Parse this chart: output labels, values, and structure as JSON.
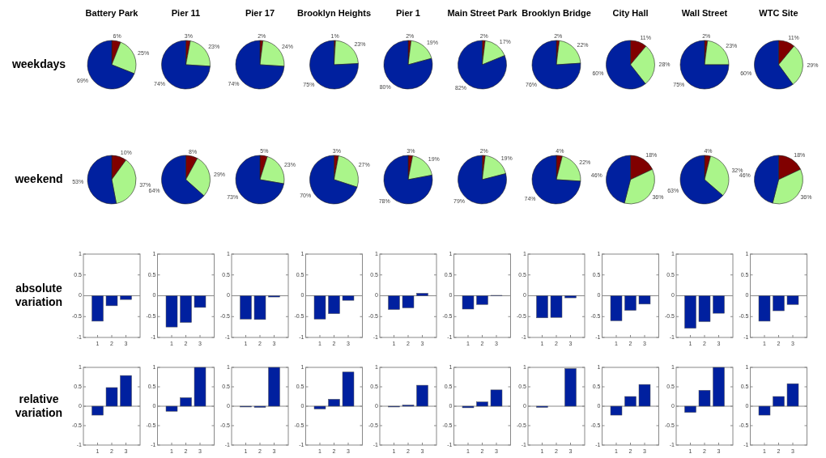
{
  "chart_data": [
    {
      "type": "pie",
      "title": "Battery Park",
      "ylabel": "weekdays",
      "categories": [
        null,
        null,
        null
      ],
      "values": [
        6,
        25,
        69
      ],
      "value_labels": [
        "6%",
        "25%",
        "69%"
      ],
      "colors": [
        "#800000",
        "#aaf58a",
        "#00209f"
      ]
    },
    {
      "type": "pie",
      "title": "Pier 11",
      "categories": [
        null,
        null,
        null
      ],
      "values": [
        3,
        23,
        74
      ],
      "value_labels": [
        "3%",
        "23%",
        "74%"
      ],
      "colors": [
        "#800000",
        "#aaf58a",
        "#00209f"
      ]
    },
    {
      "type": "pie",
      "title": "Pier 17",
      "categories": [
        null,
        null,
        null
      ],
      "values": [
        2,
        24,
        74
      ],
      "value_labels": [
        "2%",
        "24%",
        "74%"
      ],
      "colors": [
        "#800000",
        "#aaf58a",
        "#00209f"
      ]
    },
    {
      "type": "pie",
      "title": "Brooklyn Heights",
      "categories": [
        null,
        null,
        null
      ],
      "values": [
        1,
        23,
        75
      ],
      "value_labels": [
        "1%",
        "23%",
        "75%"
      ],
      "colors": [
        "#800000",
        "#aaf58a",
        "#00209f"
      ]
    },
    {
      "type": "pie",
      "title": "Pier 1",
      "categories": [
        null,
        null,
        null
      ],
      "values": [
        2,
        19,
        80
      ],
      "value_labels": [
        "2%",
        "19%",
        "80%"
      ],
      "colors": [
        "#800000",
        "#aaf58a",
        "#00209f"
      ]
    },
    {
      "type": "pie",
      "title": "Main Street Park",
      "categories": [
        null,
        null,
        null
      ],
      "values": [
        2,
        17,
        82
      ],
      "value_labels": [
        "2%",
        "17%",
        "82%"
      ],
      "colors": [
        "#800000",
        "#aaf58a",
        "#00209f"
      ]
    },
    {
      "type": "pie",
      "title": "Brooklyn Bridge",
      "categories": [
        null,
        null,
        null
      ],
      "values": [
        2,
        22,
        76
      ],
      "value_labels": [
        "2%",
        "22%",
        "76%"
      ],
      "colors": [
        "#800000",
        "#aaf58a",
        "#00209f"
      ]
    },
    {
      "type": "pie",
      "title": "City Hall",
      "categories": [
        null,
        null,
        null
      ],
      "values": [
        11,
        28,
        60
      ],
      "value_labels": [
        "11%",
        "28%",
        "60%"
      ],
      "colors": [
        "#800000",
        "#aaf58a",
        "#00209f"
      ]
    },
    {
      "type": "pie",
      "title": "Wall Street",
      "categories": [
        null,
        null,
        null
      ],
      "values": [
        2,
        23,
        75
      ],
      "value_labels": [
        "2%",
        "23%",
        "75%"
      ],
      "colors": [
        "#800000",
        "#aaf58a",
        "#00209f"
      ]
    },
    {
      "type": "pie",
      "title": "WTC Site",
      "categories": [
        null,
        null,
        null
      ],
      "values": [
        11,
        29,
        60
      ],
      "value_labels": [
        "11%",
        "29%",
        "60%"
      ],
      "colors": [
        "#800000",
        "#aaf58a",
        "#00209f"
      ]
    },
    {
      "type": "pie",
      "ylabel": "weekend",
      "categories": [
        null,
        null,
        null
      ],
      "values": [
        10,
        37,
        53
      ],
      "value_labels": [
        "10%",
        "37%",
        "53%"
      ],
      "colors": [
        "#800000",
        "#aaf58a",
        "#00209f"
      ]
    },
    {
      "type": "pie",
      "categories": [
        null,
        null,
        null
      ],
      "values": [
        8,
        29,
        64
      ],
      "value_labels": [
        "8%",
        "29%",
        "64%"
      ],
      "colors": [
        "#800000",
        "#aaf58a",
        "#00209f"
      ]
    },
    {
      "type": "pie",
      "categories": [
        null,
        null,
        null
      ],
      "values": [
        5,
        23,
        73
      ],
      "value_labels": [
        "5%",
        "23%",
        "73%"
      ],
      "colors": [
        "#800000",
        "#aaf58a",
        "#00209f"
      ]
    },
    {
      "type": "pie",
      "categories": [
        null,
        null,
        null
      ],
      "values": [
        3,
        27,
        70
      ],
      "value_labels": [
        "3%",
        "27%",
        "70%"
      ],
      "colors": [
        "#800000",
        "#aaf58a",
        "#00209f"
      ]
    },
    {
      "type": "pie",
      "categories": [
        null,
        null,
        null
      ],
      "values": [
        3,
        19,
        78
      ],
      "value_labels": [
        "3%",
        "19%",
        "78%"
      ],
      "colors": [
        "#800000",
        "#aaf58a",
        "#00209f"
      ]
    },
    {
      "type": "pie",
      "categories": [
        null,
        null,
        null
      ],
      "values": [
        2,
        19,
        79
      ],
      "value_labels": [
        "2%",
        "19%",
        "79%"
      ],
      "colors": [
        "#800000",
        "#aaf58a",
        "#00209f"
      ]
    },
    {
      "type": "pie",
      "categories": [
        null,
        null,
        null
      ],
      "values": [
        4,
        22,
        74
      ],
      "value_labels": [
        "4%",
        "22%",
        "74%"
      ],
      "colors": [
        "#800000",
        "#aaf58a",
        "#00209f"
      ]
    },
    {
      "type": "pie",
      "categories": [
        null,
        null,
        null
      ],
      "values": [
        18,
        36,
        46
      ],
      "value_labels": [
        "18%",
        "36%",
        "46%"
      ],
      "colors": [
        "#800000",
        "#aaf58a",
        "#00209f"
      ]
    },
    {
      "type": "pie",
      "categories": [
        null,
        null,
        null
      ],
      "values": [
        4,
        32,
        63
      ],
      "value_labels": [
        "4%",
        "32%",
        "63%"
      ],
      "colors": [
        "#800000",
        "#aaf58a",
        "#00209f"
      ]
    },
    {
      "type": "pie",
      "categories": [
        null,
        null,
        null
      ],
      "values": [
        18,
        36,
        46
      ],
      "value_labels": [
        "18%",
        "36%",
        "46%"
      ],
      "colors": [
        "#800000",
        "#aaf58a",
        "#00209f"
      ]
    },
    {
      "type": "bar",
      "ylabel": "absolute variation",
      "categories": [
        "1",
        "2",
        "3"
      ],
      "values": [
        -0.61,
        -0.24,
        -0.09
      ],
      "color": "#00209f",
      "ylim": [
        -1,
        1
      ],
      "yticks": [
        -1,
        -0.5,
        0,
        0.5,
        1
      ]
    },
    {
      "type": "bar",
      "categories": [
        "1",
        "2",
        "3"
      ],
      "values": [
        -0.75,
        -0.64,
        -0.28
      ],
      "color": "#00209f",
      "ylim": [
        -1,
        1
      ],
      "yticks": [
        -1,
        -0.5,
        0,
        0.5,
        1
      ]
    },
    {
      "type": "bar",
      "categories": [
        "1",
        "2",
        "3"
      ],
      "values": [
        -0.56,
        -0.57,
        -0.03
      ],
      "color": "#00209f",
      "ylim": [
        -1,
        1
      ],
      "yticks": [
        -1,
        -0.5,
        0,
        0.5,
        1
      ]
    },
    {
      "type": "bar",
      "categories": [
        "1",
        "2",
        "3"
      ],
      "values": [
        -0.56,
        -0.43,
        -0.11
      ],
      "color": "#00209f",
      "ylim": [
        -1,
        1
      ],
      "yticks": [
        -1,
        -0.5,
        0,
        0.5,
        1
      ]
    },
    {
      "type": "bar",
      "categories": [
        "1",
        "2",
        "3"
      ],
      "values": [
        -0.33,
        -0.29,
        0.06
      ],
      "color": "#00209f",
      "ylim": [
        -1,
        1
      ],
      "yticks": [
        -1,
        -0.5,
        0,
        0.5,
        1
      ]
    },
    {
      "type": "bar",
      "categories": [
        "1",
        "2",
        "3"
      ],
      "values": [
        -0.32,
        -0.21,
        0.01
      ],
      "color": "#00209f",
      "ylim": [
        -1,
        1
      ],
      "yticks": [
        -1,
        -0.5,
        0,
        0.5,
        1
      ]
    },
    {
      "type": "bar",
      "categories": [
        "1",
        "2",
        "3"
      ],
      "values": [
        -0.53,
        -0.52,
        -0.05
      ],
      "color": "#00209f",
      "ylim": [
        -1,
        1
      ],
      "yticks": [
        -1,
        -0.5,
        0,
        0.5,
        1
      ]
    },
    {
      "type": "bar",
      "categories": [
        "1",
        "2",
        "3"
      ],
      "values": [
        -0.6,
        -0.35,
        -0.2
      ],
      "color": "#00209f",
      "ylim": [
        -1,
        1
      ],
      "yticks": [
        -1,
        -0.5,
        0,
        0.5,
        1
      ]
    },
    {
      "type": "bar",
      "categories": [
        "1",
        "2",
        "3"
      ],
      "values": [
        -0.78,
        -0.62,
        -0.42
      ],
      "color": "#00209f",
      "ylim": [
        -1,
        1
      ],
      "yticks": [
        -1,
        -0.5,
        0,
        0.5,
        1
      ]
    },
    {
      "type": "bar",
      "categories": [
        "1",
        "2",
        "3"
      ],
      "values": [
        -0.61,
        -0.36,
        -0.21
      ],
      "color": "#00209f",
      "ylim": [
        -1,
        1
      ],
      "yticks": [
        -1,
        -0.5,
        0,
        0.5,
        1
      ]
    },
    {
      "type": "bar",
      "ylabel": "relative variation",
      "categories": [
        "1",
        "2",
        "3"
      ],
      "values": [
        -0.23,
        0.48,
        0.79
      ],
      "color": "#00209f",
      "ylim": [
        -1,
        1
      ],
      "yticks": [
        -1,
        -0.5,
        0,
        0.5,
        1
      ]
    },
    {
      "type": "bar",
      "categories": [
        "1",
        "2",
        "3"
      ],
      "values": [
        -0.13,
        0.22,
        1
      ],
      "color": "#00209f",
      "ylim": [
        -1,
        1
      ],
      "yticks": [
        -1,
        -0.5,
        0,
        0.5,
        1
      ]
    },
    {
      "type": "bar",
      "categories": [
        "1",
        "2",
        "3"
      ],
      "values": [
        -0.02,
        -0.03,
        1
      ],
      "color": "#00209f",
      "ylim": [
        -1,
        1
      ],
      "yticks": [
        -1,
        -0.5,
        0,
        0.5,
        1
      ]
    },
    {
      "type": "bar",
      "categories": [
        "1",
        "2",
        "3"
      ],
      "values": [
        -0.07,
        0.18,
        0.88
      ],
      "color": "#00209f",
      "ylim": [
        -1,
        1
      ],
      "yticks": [
        -1,
        -0.5,
        0,
        0.5,
        1
      ]
    },
    {
      "type": "bar",
      "categories": [
        "1",
        "2",
        "3"
      ],
      "values": [
        -0.02,
        0.03,
        0.54
      ],
      "color": "#00209f",
      "ylim": [
        -1,
        1
      ],
      "yticks": [
        -1,
        -0.5,
        0,
        0.5,
        1
      ]
    },
    {
      "type": "bar",
      "categories": [
        "1",
        "2",
        "3"
      ],
      "values": [
        -0.04,
        0.11,
        0.42
      ],
      "color": "#00209f",
      "ylim": [
        -1,
        1
      ],
      "yticks": [
        -1,
        -0.5,
        0,
        0.5,
        1
      ]
    },
    {
      "type": "bar",
      "categories": [
        "1",
        "2",
        "3"
      ],
      "values": [
        -0.03,
        0,
        0.97
      ],
      "color": "#00209f",
      "ylim": [
        -1,
        1
      ],
      "yticks": [
        -1,
        -0.5,
        0,
        0.5,
        1
      ]
    },
    {
      "type": "bar",
      "categories": [
        "1",
        "2",
        "3"
      ],
      "values": [
        -0.23,
        0.25,
        0.56
      ],
      "color": "#00209f",
      "ylim": [
        -1,
        1
      ],
      "yticks": [
        -1,
        -0.5,
        0,
        0.5,
        1
      ]
    },
    {
      "type": "bar",
      "categories": [
        "1",
        "2",
        "3"
      ],
      "values": [
        -0.16,
        0.41,
        1
      ],
      "color": "#00209f",
      "ylim": [
        -1,
        1
      ],
      "yticks": [
        -1,
        -0.5,
        0,
        0.5,
        1
      ]
    },
    {
      "type": "bar",
      "categories": [
        "1",
        "2",
        "3"
      ],
      "values": [
        -0.23,
        0.25,
        0.58
      ],
      "color": "#00209f",
      "ylim": [
        -1,
        1
      ],
      "yticks": [
        -1,
        -0.5,
        0,
        0.5,
        1
      ]
    }
  ]
}
